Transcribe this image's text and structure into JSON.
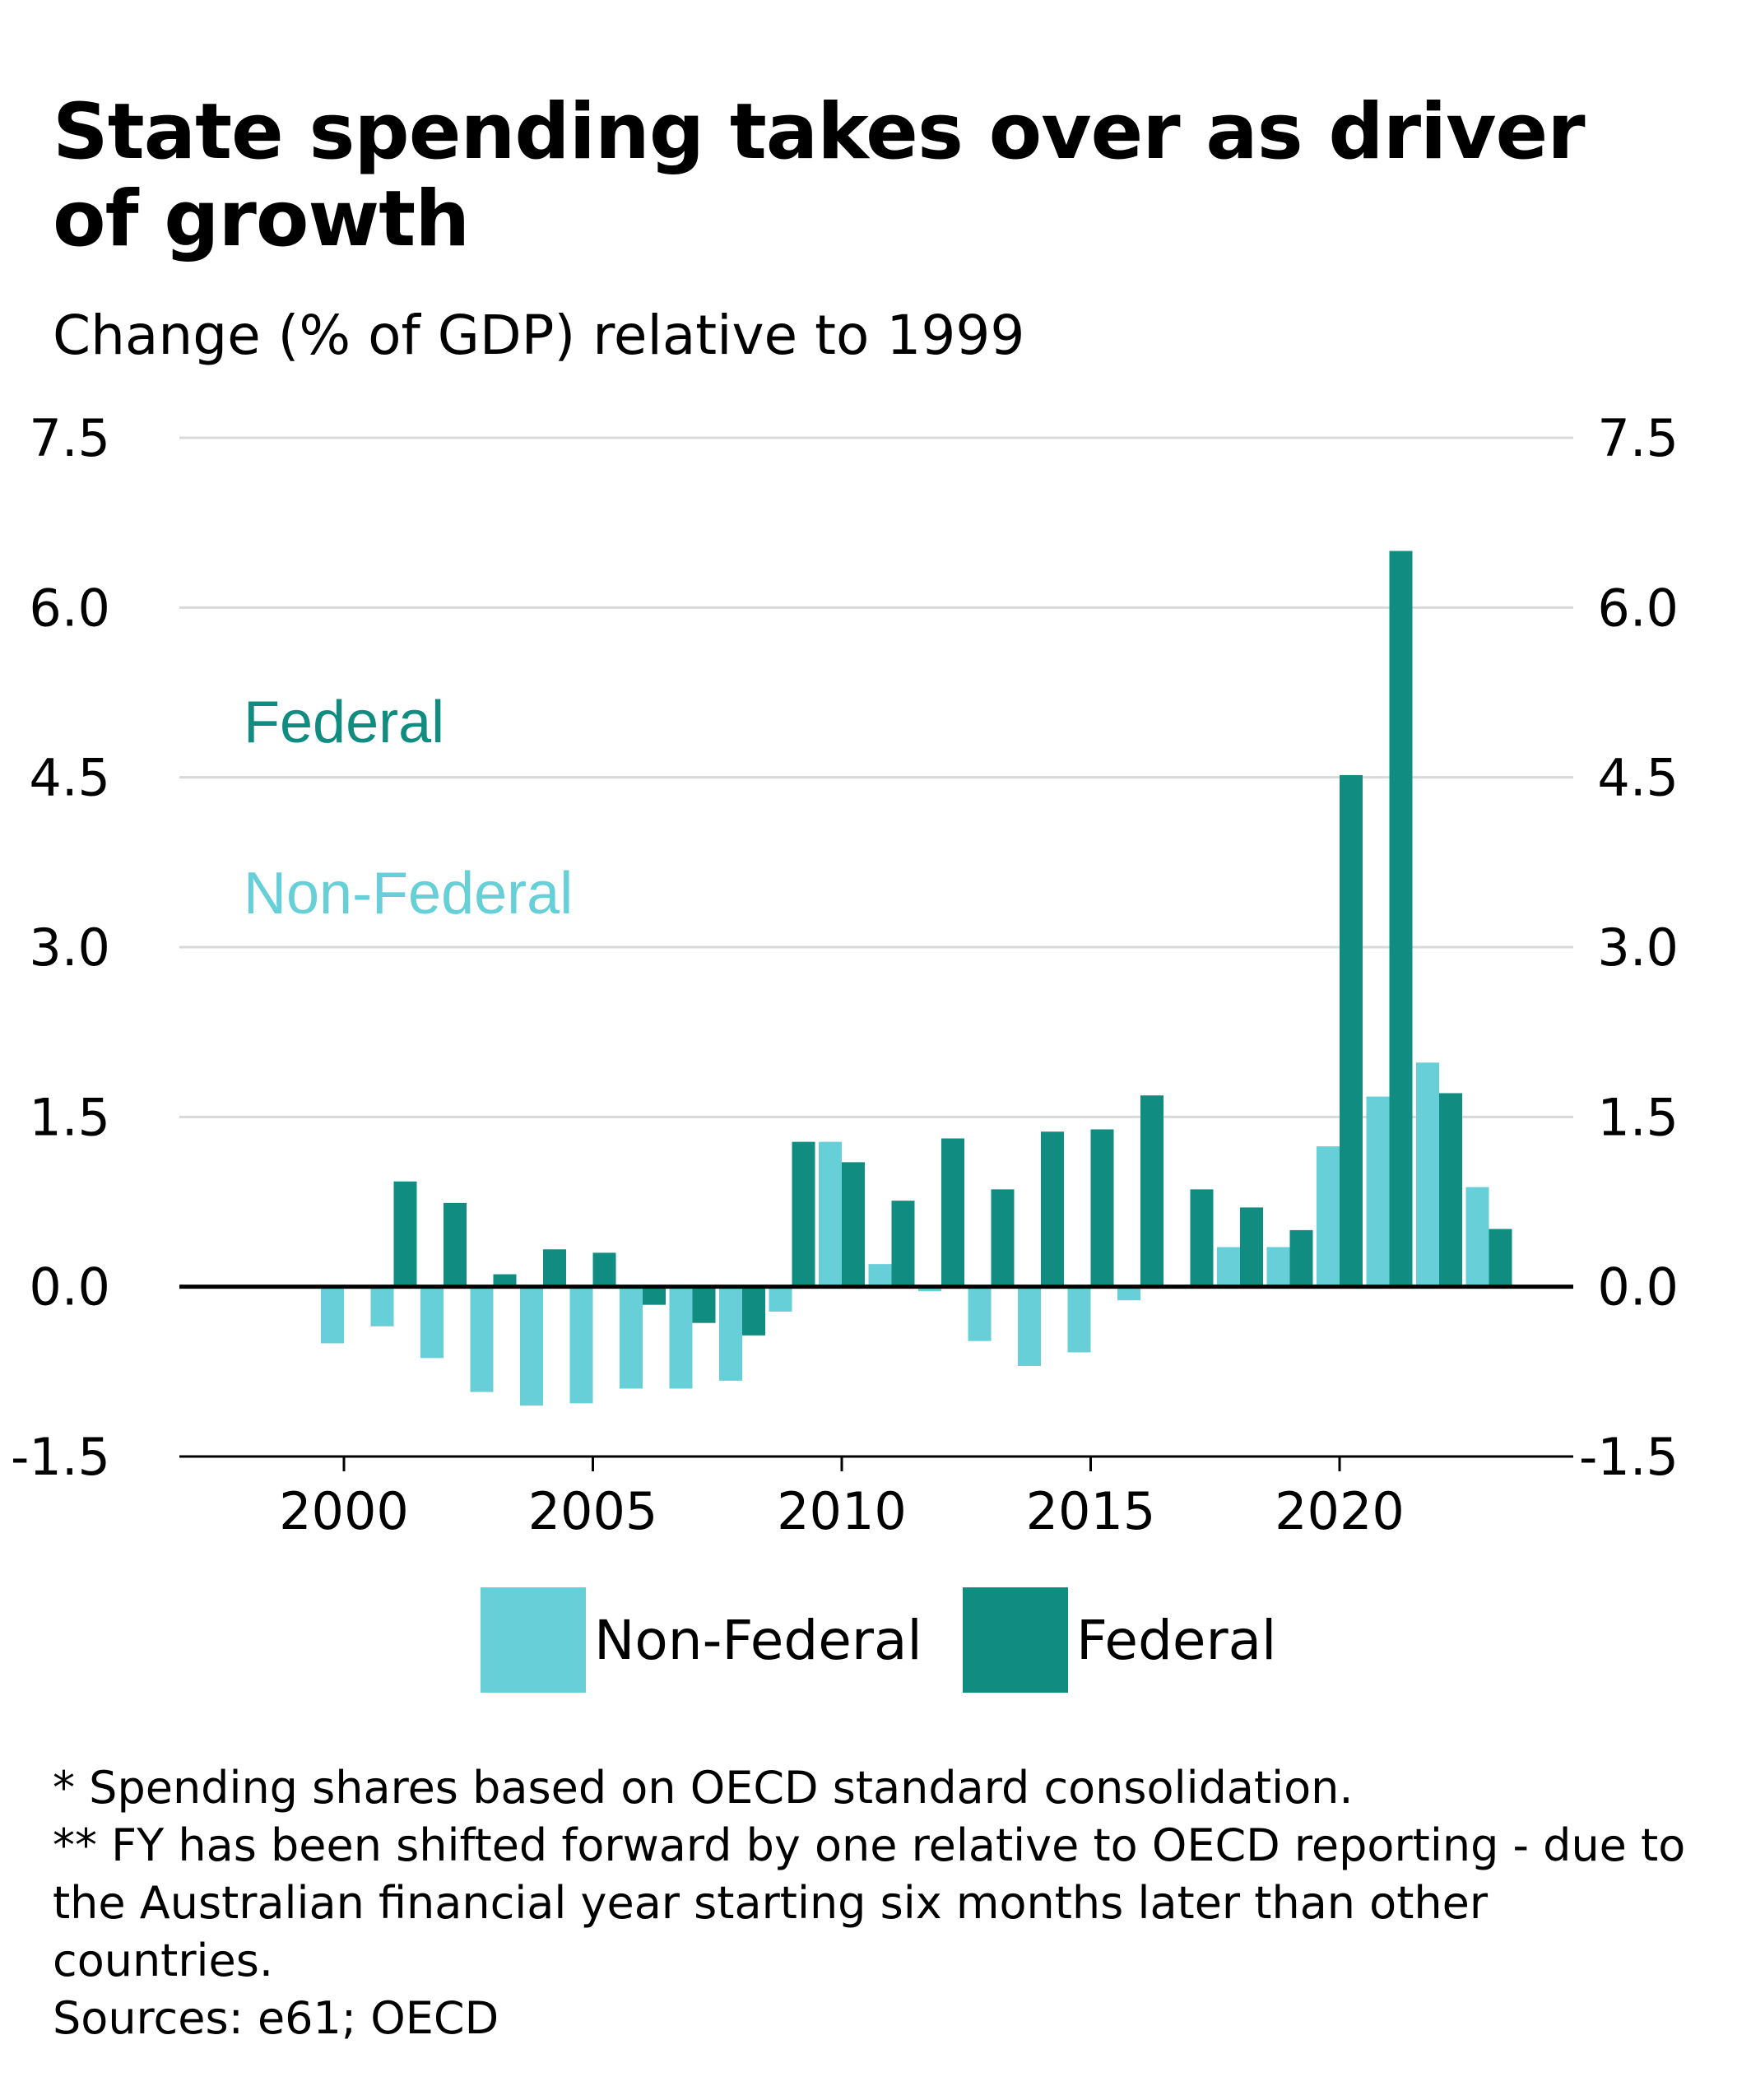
{
  "title": "State spending takes over as driver of growth",
  "subtitle": "Change (% of GDP) relative to 1999",
  "colors": {
    "non_federal": "#66CFD8",
    "federal": "#118C80",
    "grid": "#d9d9d9",
    "zero": "#000000"
  },
  "annotations": {
    "federal": "Federal",
    "non_federal": "Non-Federal"
  },
  "legend": {
    "non_federal": "Non-Federal",
    "federal": "Federal"
  },
  "notes": [
    "* Spending shares based on OECD standard consolidation.",
    "** FY has been shifted forward by one relative to OECD reporting - due to the Australian financial year starting six months later than other countries.",
    "Sources: e61; OECD"
  ],
  "chart_data": {
    "type": "bar",
    "title": "State spending takes over as driver of growth",
    "subtitle": "Change (% of GDP) relative to 1999",
    "x": [
      2000,
      2001,
      2002,
      2003,
      2004,
      2005,
      2006,
      2007,
      2008,
      2009,
      2010,
      2011,
      2012,
      2013,
      2014,
      2015,
      2016,
      2017,
      2018,
      2019,
      2020,
      2021,
      2022,
      2023
    ],
    "x_ticks": [
      "2000",
      "2005",
      "2010",
      "2015",
      "2020"
    ],
    "y_ticks": [
      "7.5",
      "6.0",
      "4.5",
      "3.0",
      "1.5",
      "0.0",
      "-1.5"
    ],
    "ylim": [
      -1.5,
      7.5
    ],
    "y_axis": "both sides",
    "grid": true,
    "legend_position": "bottom",
    "series": [
      {
        "name": "Non-Federal",
        "values": [
          -0.5,
          -0.35,
          -0.63,
          -0.93,
          -1.05,
          -1.03,
          -0.9,
          -0.9,
          -0.83,
          -0.22,
          1.28,
          0.2,
          -0.04,
          -0.48,
          -0.7,
          -0.58,
          -0.12,
          0.0,
          0.35,
          0.35,
          1.24,
          1.68,
          1.98,
          0.88
        ]
      },
      {
        "name": "Federal",
        "values": [
          0.0,
          0.93,
          0.74,
          0.11,
          0.33,
          0.3,
          -0.16,
          -0.32,
          -0.43,
          1.28,
          1.1,
          0.76,
          1.31,
          0.86,
          1.37,
          1.39,
          1.69,
          0.86,
          0.7,
          0.5,
          4.52,
          6.5,
          1.71,
          0.51
        ]
      }
    ]
  }
}
